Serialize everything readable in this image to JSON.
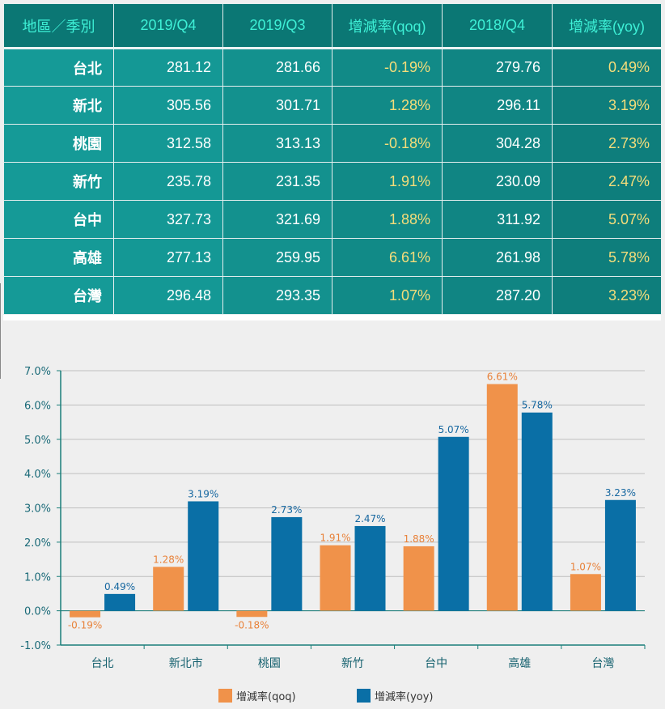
{
  "table": {
    "headers": [
      "地區／季別",
      "2019/Q4",
      "2019/Q3",
      "增減率(qoq)",
      "2018/Q4",
      "增減率(yoy)"
    ],
    "rows": [
      [
        "台北",
        "281.12",
        "281.66",
        "-0.19%",
        "279.76",
        "0.49%"
      ],
      [
        "新北",
        "305.56",
        "301.71",
        "1.28%",
        "296.11",
        "3.19%"
      ],
      [
        "桃園",
        "312.58",
        "313.13",
        "-0.18%",
        "304.28",
        "2.73%"
      ],
      [
        "新竹",
        "235.78",
        "231.35",
        "1.91%",
        "230.09",
        "2.47%"
      ],
      [
        "台中",
        "327.73",
        "321.69",
        "1.88%",
        "311.92",
        "5.07%"
      ],
      [
        "高雄",
        "277.13",
        "259.95",
        "6.61%",
        "261.98",
        "5.78%"
      ],
      [
        "台灣",
        "296.48",
        "293.35",
        "1.07%",
        "287.20",
        "3.23%"
      ]
    ]
  },
  "chart_data": {
    "type": "bar",
    "categories": [
      "台北",
      "新北市",
      "桃園",
      "新竹",
      "台中",
      "高雄",
      "台灣"
    ],
    "series": [
      {
        "name": "增減率(qoq)",
        "values": [
          -0.19,
          1.28,
          -0.18,
          1.91,
          1.88,
          6.61,
          1.07
        ],
        "labels": [
          "-0.19%",
          "1.28%",
          "-0.18%",
          "1.91%",
          "1.88%",
          "6.61%",
          "1.07%"
        ],
        "color": "#f0924a",
        "label_color": "#e8823a"
      },
      {
        "name": "增減率(yoy)",
        "values": [
          0.49,
          3.19,
          2.73,
          2.47,
          5.07,
          5.78,
          3.23
        ],
        "labels": [
          "0.49%",
          "3.19%",
          "2.73%",
          "2.47%",
          "5.07%",
          "5.78%",
          "3.23%"
        ],
        "color": "#0a6fa6",
        "label_color": "#1667a0"
      }
    ],
    "ylim": [
      -1.0,
      7.0
    ],
    "yticks": [
      -1.0,
      0.0,
      1.0,
      2.0,
      3.0,
      4.0,
      5.0,
      6.0,
      7.0
    ],
    "ytick_labels": [
      "-1.0%",
      "0.0%",
      "1.0%",
      "2.0%",
      "3.0%",
      "4.0%",
      "5.0%",
      "6.0%",
      "7.0%"
    ],
    "grid": true,
    "legend_position": "bottom",
    "axis_color": "#1a7f7a",
    "tick_label_color": "#1a6a78",
    "category_label_color": "#14606e",
    "grid_color": "#bfbfbf"
  }
}
